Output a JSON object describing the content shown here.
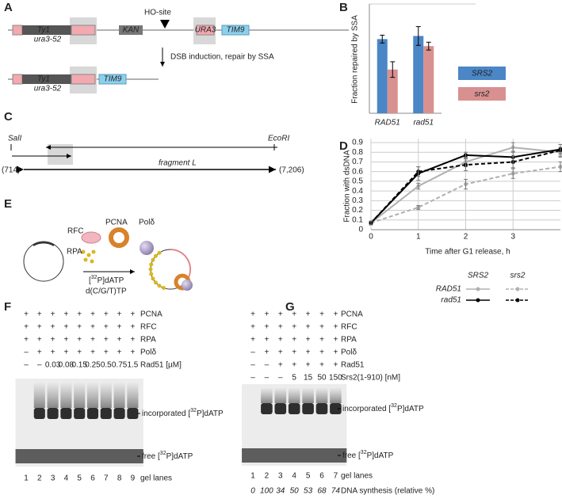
{
  "panel_labels": [
    "A",
    "B",
    "C",
    "D",
    "E",
    "F",
    "G"
  ],
  "panel_a": {
    "top": {
      "ty1": "Ty1",
      "ura3": "ura3-52",
      "kan": "KAN",
      "ho_site": "HO-site",
      "ura3_marker": "URA3",
      "tim9": "TIM9"
    },
    "arrow_label": "DSB induction, repair by SSA",
    "bottom": {
      "ty1": "Ty1",
      "ura3": "ura3-52",
      "tim9": "TIM9"
    }
  },
  "panel_c": {
    "sal": "SalI",
    "eco": "EcoRI",
    "left_coord": "(714)",
    "right_coord": "(7,206)",
    "fragment": "fragment L"
  },
  "panel_e": {
    "rfc": "RFC",
    "pcna": "PCNA",
    "pold": "Polδ",
    "rpa": "RPA",
    "datp": {
      "pre": "[",
      "sup": "32",
      "post": "P]dATP"
    },
    "dntp": "d(C/G/T)TP"
  },
  "chart_data": [
    {
      "type": "bar",
      "ylabel": "Fraction repaired by SSA",
      "categories": [
        "RAD51",
        "rad51"
      ],
      "series": [
        {
          "name": "SRS2",
          "color": "#4b86c6",
          "values": [
            0.95,
            0.99
          ],
          "errors": [
            0.05,
            0.12
          ]
        },
        {
          "name": "srs2",
          "color": "#d99090",
          "values": [
            0.56,
            0.86
          ],
          "errors": [
            0.1,
            0.05
          ]
        }
      ],
      "ylim": [
        0,
        1.4
      ],
      "legend": "right"
    },
    {
      "type": "line",
      "xlabel": "Time after G1 release, h",
      "ylabel": "Fraction with dsDNA",
      "x": [
        0,
        1,
        2,
        3,
        4
      ],
      "xlim": [
        0,
        4
      ],
      "xticks": [
        0,
        1,
        2,
        3
      ],
      "ylim": [
        0,
        0.9
      ],
      "yticks": [
        0,
        0.1,
        0.2,
        0.3,
        0.4,
        0.5,
        0.6,
        0.7,
        0.8,
        0.9
      ],
      "grid": true,
      "legend": {
        "columns": [
          "SRS2",
          "srs2"
        ],
        "rows": [
          "RAD51",
          "rad51"
        ]
      },
      "series": [
        {
          "color": "#b0b0b0",
          "dash": false,
          "values": [
            0.07,
            0.45,
            0.7,
            0.85,
            0.8
          ],
          "errors": [
            0.02,
            0.03,
            0.05,
            0.05,
            0.05
          ]
        },
        {
          "color": "#b0b0b0",
          "dash": true,
          "values": [
            0.07,
            0.23,
            0.47,
            0.58,
            0.65
          ],
          "errors": [
            0.02,
            0.02,
            0.05,
            0.05,
            0.05
          ]
        },
        {
          "color": "#000000",
          "dash": false,
          "values": [
            0.07,
            0.58,
            0.77,
            0.75,
            0.83
          ],
          "errors": [
            0.02,
            0.07,
            0.03,
            0.06,
            0.05
          ]
        },
        {
          "color": "#000000",
          "dash": true,
          "values": [
            0.07,
            0.6,
            0.67,
            0.7,
            0.82
          ],
          "errors": [
            0.02,
            0.05,
            0.06,
            0.06,
            0.06
          ]
        }
      ]
    }
  ],
  "panel_f": {
    "rows": [
      {
        "cells": [
          "+",
          "+",
          "+",
          "+",
          "+",
          "+",
          "+",
          "+",
          "+"
        ],
        "label": "PCNA"
      },
      {
        "cells": [
          "+",
          "+",
          "+",
          "+",
          "+",
          "+",
          "+",
          "+",
          "+"
        ],
        "label": "RFC"
      },
      {
        "cells": [
          "+",
          "+",
          "+",
          "+",
          "+",
          "+",
          "+",
          "+",
          "+"
        ],
        "label": "RPA"
      },
      {
        "cells": [
          "–",
          "+",
          "+",
          "+",
          "+",
          "+",
          "+",
          "+",
          "+"
        ],
        "label": "Polδ"
      },
      {
        "cells": [
          "–",
          "–",
          0.03,
          0.08,
          0.15,
          0.25,
          0.5,
          0.75,
          1.5
        ],
        "label": "Rad51 [µM]"
      }
    ],
    "incorporated": {
      "pre": "incorporated [",
      "sup": "32",
      "post": "P]dATP"
    },
    "free": {
      "pre": "free [",
      "sup": "32",
      "post": "P]dATP"
    },
    "lanes": [
      1,
      2,
      3,
      4,
      5,
      6,
      7,
      8,
      9
    ],
    "lanes_label": "gel lanes"
  },
  "panel_g": {
    "rows": [
      {
        "cells": [
          "+",
          "+",
          "+",
          "+",
          "+",
          "+",
          "+"
        ],
        "label": "PCNA"
      },
      {
        "cells": [
          "+",
          "+",
          "+",
          "+",
          "+",
          "+",
          "+"
        ],
        "label": "RFC"
      },
      {
        "cells": [
          "+",
          "+",
          "+",
          "+",
          "+",
          "+",
          "+"
        ],
        "label": "RPA"
      },
      {
        "cells": [
          "–",
          "+",
          "+",
          "+",
          "+",
          "+",
          "+"
        ],
        "label": "Polδ"
      },
      {
        "cells": [
          "–",
          "–",
          "+",
          "+",
          "+",
          "+",
          "+"
        ],
        "label": "Rad51"
      },
      {
        "cells": [
          "–",
          "–",
          "–",
          5,
          15,
          50,
          150
        ],
        "label": "Srs2(1-910) [nM]"
      }
    ],
    "incorporated": {
      "pre": "incorporated [",
      "sup": "32",
      "post": "P]dATP"
    },
    "free": {
      "pre": "free [",
      "sup": "32",
      "post": "P]dATP"
    },
    "lanes": [
      1,
      2,
      3,
      4,
      5,
      6,
      7
    ],
    "lanes_label": "gel lanes",
    "synthesis": {
      "values": [
        0,
        100,
        34,
        50,
        53,
        68,
        74
      ],
      "label": "DNA synthesis (relative %)"
    }
  }
}
